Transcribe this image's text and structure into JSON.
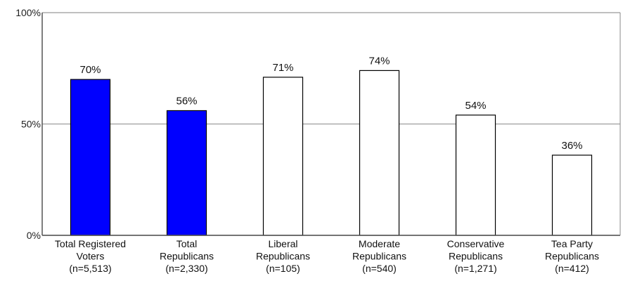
{
  "chart_data": {
    "type": "bar",
    "title": "",
    "xlabel": "",
    "ylabel": "",
    "ylim": [
      0,
      100
    ],
    "y_ticks": [
      {
        "value": 0,
        "label": "0%"
      },
      {
        "value": 50,
        "label": "50%"
      },
      {
        "value": 100,
        "label": "100%"
      }
    ],
    "grid": true,
    "categories": [
      [
        "Total Registered",
        "Voters",
        "(n=5,513)"
      ],
      [
        "Total",
        "Republicans",
        "(n=2,330)"
      ],
      [
        "Liberal",
        "Republicans",
        "(n=105)"
      ],
      [
        "Moderate",
        "Republicans",
        "(n=540)"
      ],
      [
        "Conservative",
        "Republicans",
        "(n=1,271)"
      ],
      [
        "Tea Party",
        "Republicans",
        "(n=412)"
      ]
    ],
    "values": [
      70,
      56,
      71,
      74,
      54,
      36
    ],
    "value_labels": [
      "70%",
      "56%",
      "71%",
      "74%",
      "54%",
      "36%"
    ],
    "bar_fills": [
      "#0000ff",
      "#0000ff",
      "#ffffff",
      "#ffffff",
      "#ffffff",
      "#ffffff"
    ],
    "bar_stroke": "#000000",
    "grid_color": "#aaaaaa"
  }
}
